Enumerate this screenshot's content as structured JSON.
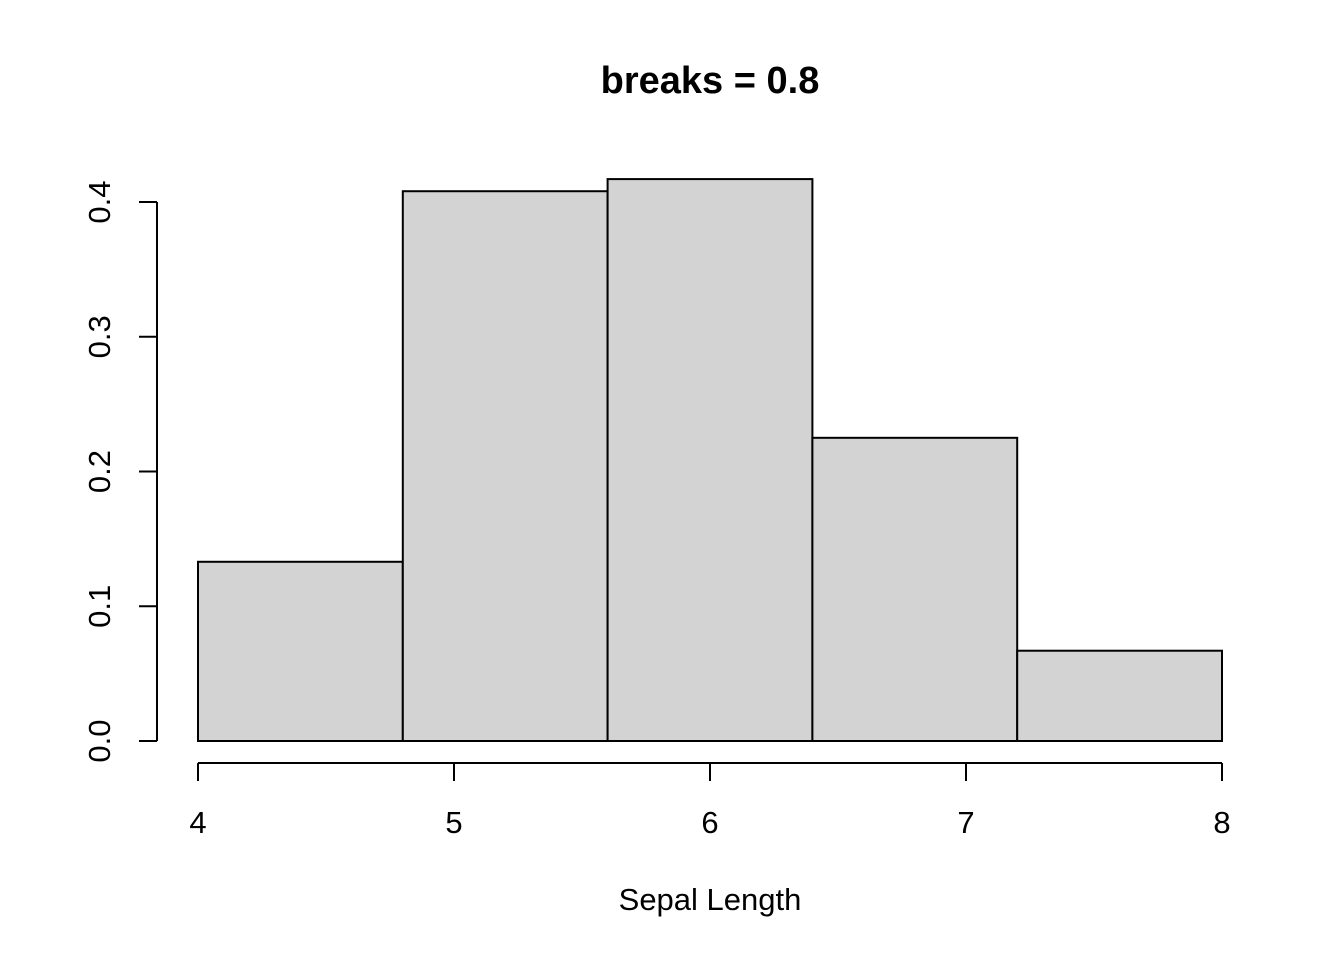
{
  "chart_data": {
    "type": "bar",
    "title": "breaks = 0.8",
    "xlabel": "Sepal Length",
    "ylabel": "",
    "bin_edges": [
      4.0,
      4.8,
      5.6,
      6.4,
      7.2,
      8.0
    ],
    "values": [
      0.133,
      0.408,
      0.417,
      0.225,
      0.067
    ],
    "xlim": [
      4,
      8
    ],
    "ylim": [
      0,
      0.4
    ],
    "x_ticks": [
      4,
      5,
      6,
      7,
      8
    ],
    "x_tick_labels": [
      "4",
      "5",
      "6",
      "7",
      "8"
    ],
    "y_ticks": [
      0.0,
      0.1,
      0.2,
      0.3,
      0.4
    ],
    "y_tick_labels": [
      "0.0",
      "0.1",
      "0.2",
      "0.3",
      "0.4"
    ],
    "grid": false,
    "bar_color": "#d3d3d3",
    "edge_color": "#000000"
  }
}
